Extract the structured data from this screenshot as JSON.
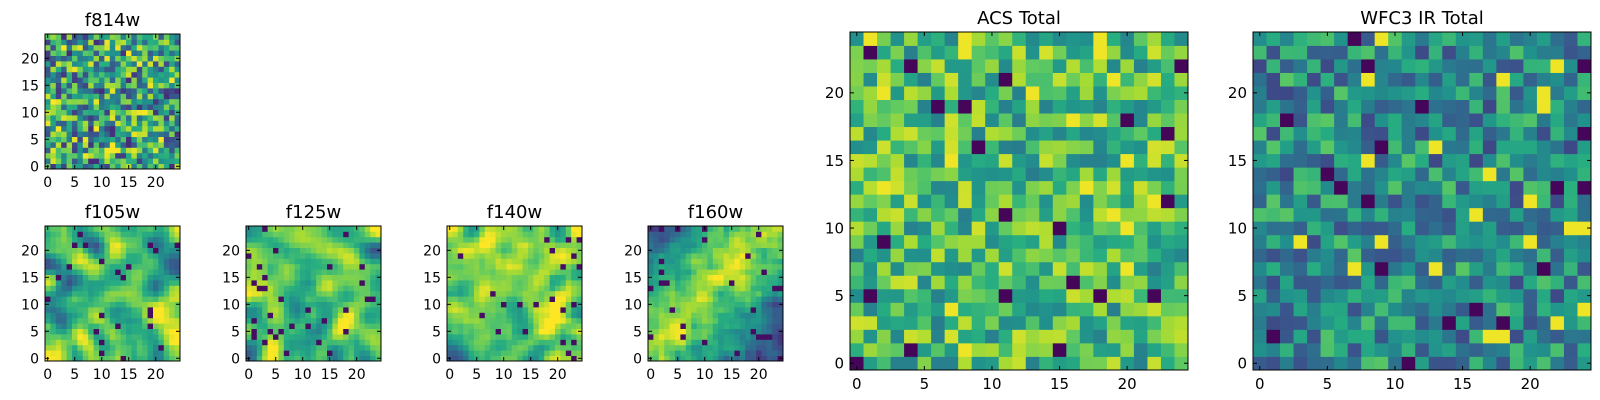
{
  "chart_data": [
    {
      "type": "heatmap",
      "title": "f814w",
      "grid_size": 25,
      "xticks": [
        "0",
        "5",
        "10",
        "15",
        "20"
      ],
      "yticks": [
        "0",
        "5",
        "10",
        "15",
        "20"
      ],
      "xlim": [
        0,
        25
      ],
      "ylim": [
        0,
        25
      ],
      "colormap": "viridis",
      "texture": "fine noise",
      "seed": 3
    },
    {
      "type": "heatmap",
      "title": "f105w",
      "grid_size": 25,
      "xticks": [
        "0",
        "5",
        "10",
        "15",
        "20"
      ],
      "yticks": [
        "0",
        "5",
        "10",
        "15",
        "20"
      ],
      "xlim": [
        0,
        25
      ],
      "ylim": [
        0,
        25
      ],
      "colormap": "viridis",
      "texture": "smooth, bright",
      "seed": 11
    },
    {
      "type": "heatmap",
      "title": "f125w",
      "grid_size": 25,
      "xticks": [
        "0",
        "5",
        "10",
        "15",
        "20"
      ],
      "yticks": [
        "0",
        "5",
        "10",
        "15",
        "20"
      ],
      "xlim": [
        0,
        25
      ],
      "ylim": [
        0,
        25
      ],
      "colormap": "viridis",
      "texture": "smooth, bright",
      "seed": 19
    },
    {
      "type": "heatmap",
      "title": "f140w",
      "grid_size": 25,
      "xticks": [
        "0",
        "5",
        "10",
        "15",
        "20"
      ],
      "yticks": [
        "0",
        "5",
        "10",
        "15",
        "20"
      ],
      "xlim": [
        0,
        25
      ],
      "ylim": [
        0,
        25
      ],
      "colormap": "viridis",
      "texture": "smooth, mixed",
      "seed": 27
    },
    {
      "type": "heatmap",
      "title": "f160w",
      "grid_size": 25,
      "xticks": [
        "0",
        "5",
        "10",
        "15",
        "20"
      ],
      "yticks": [
        "0",
        "5",
        "10",
        "15",
        "20"
      ],
      "xlim": [
        0,
        25
      ],
      "ylim": [
        0,
        25
      ],
      "colormap": "viridis",
      "texture": "smooth, diagonal bright band",
      "seed": 35
    },
    {
      "type": "heatmap",
      "title": "ACS Total",
      "grid_size": 25,
      "xticks": [
        "0",
        "5",
        "10",
        "15",
        "20"
      ],
      "yticks": [
        "0",
        "5",
        "10",
        "15",
        "20"
      ],
      "xlim": [
        0,
        25
      ],
      "ylim": [
        0,
        25
      ],
      "colormap": "viridis",
      "texture": "coarse noise, mostly green",
      "seed": 43
    },
    {
      "type": "heatmap",
      "title": "WFC3 IR Total",
      "grid_size": 25,
      "xticks": [
        "0",
        "5",
        "10",
        "15",
        "20"
      ],
      "yticks": [
        "0",
        "5",
        "10",
        "15",
        "20"
      ],
      "xlim": [
        0,
        25
      ],
      "ylim": [
        0,
        25
      ],
      "colormap": "viridis",
      "texture": "coarse noise, mostly teal",
      "seed": 51
    }
  ],
  "colors": {
    "axis": "#000000",
    "background": "#ffffff"
  }
}
